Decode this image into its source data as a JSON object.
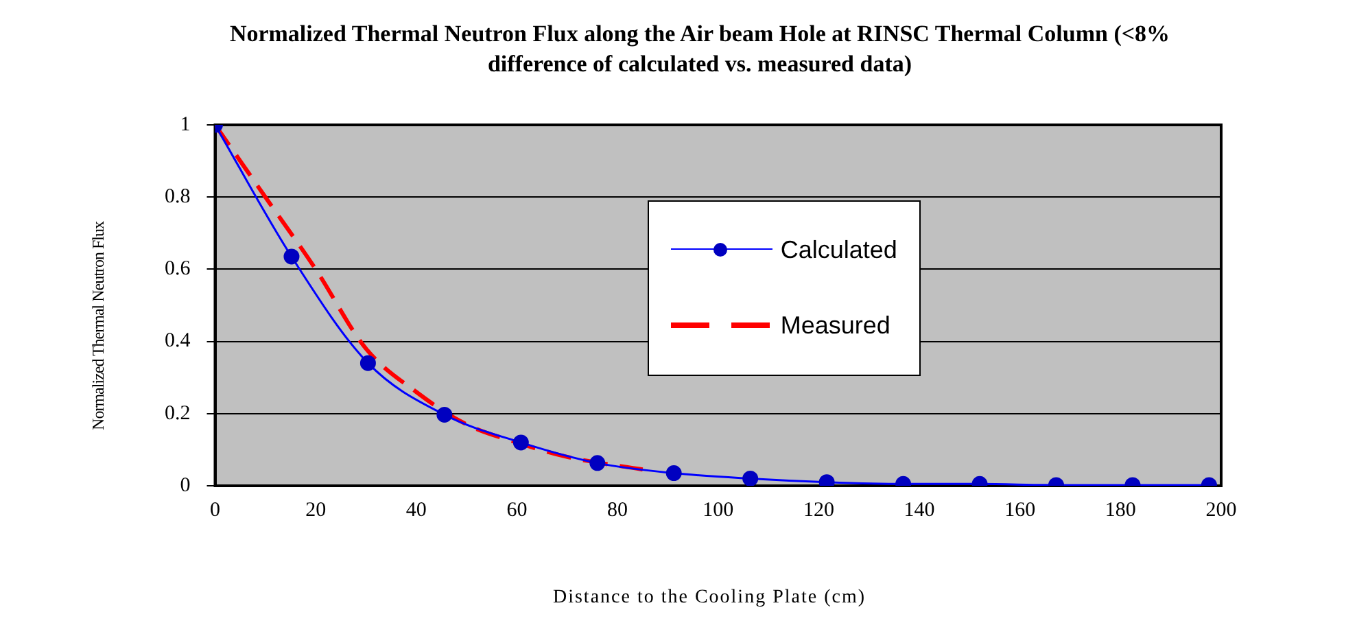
{
  "chart_data": {
    "type": "line",
    "title": "Normalized Thermal Neutron Flux along the Air beam Hole at RINSC Thermal Column  (<8% difference of calculated vs. measured data)",
    "xlabel": "Distance to the Cooling Plate  (cm)",
    "ylabel": "Normalized Thermal Neutron Flux",
    "series": [
      {
        "name": "Calculated",
        "color": "#0000ff",
        "marker": "circle",
        "line_style": "solid",
        "x": [
          0,
          15.2,
          30.4,
          45.6,
          60.8,
          76,
          91.2,
          106.4,
          121.6,
          136.8,
          152,
          167.2,
          182.4,
          197.6
        ],
        "values": [
          1,
          0.635,
          0.34,
          0.197,
          0.12,
          0.063,
          0.035,
          0.02,
          0.01,
          0.005,
          0.005,
          0.002,
          0.002,
          0.002
        ]
      },
      {
        "name": "Measured",
        "color": "#ff0000",
        "marker": "none",
        "line_style": "dashed",
        "x": [
          0,
          10,
          20,
          30,
          40,
          50,
          60,
          70,
          85
        ],
        "values": [
          1,
          0.8,
          0.6,
          0.38,
          0.26,
          0.17,
          0.12,
          0.08,
          0.045
        ]
      }
    ],
    "xlim": [
      0,
      200
    ],
    "xticks": [
      0,
      20,
      40,
      60,
      80,
      100,
      120,
      140,
      160,
      180,
      200
    ],
    "ylim": [
      0,
      1
    ],
    "yticks": [
      0,
      0.2,
      0.4,
      0.6,
      0.8,
      1
    ],
    "grid": "y",
    "legend": "center"
  }
}
